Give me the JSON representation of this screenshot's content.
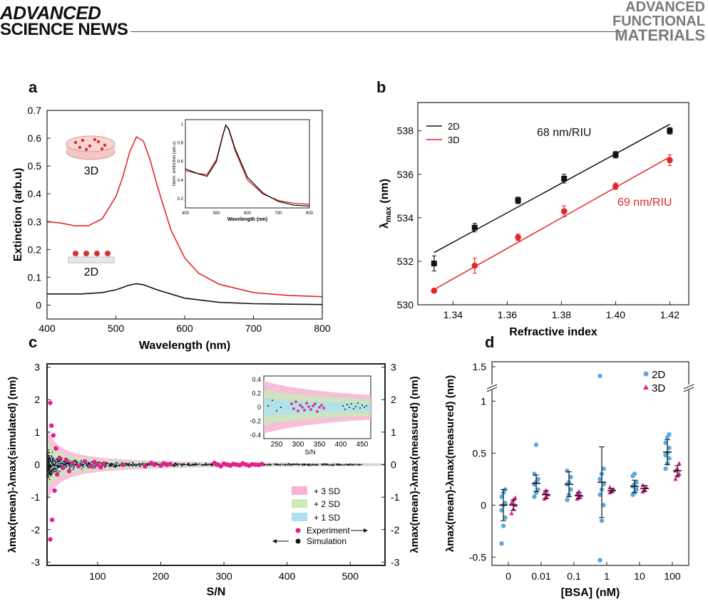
{
  "header": {
    "left_line1": "ADVANCED",
    "left_line2": "SCIENCE NEWS",
    "right_line1": "ADVANCED",
    "right_line2": "FUNCTIONAL",
    "right_line3": "MATERIALS"
  },
  "colors": {
    "red": "#e3262a",
    "black": "#111111",
    "blue": "#5aa9e0",
    "magenta": "#e3208c",
    "pink": "#f6b3d3",
    "green": "#c8ebb8",
    "cyan": "#aee0f0"
  },
  "chart_data": [
    {
      "panel": "a",
      "type": "line",
      "xlabel": "Wavelength (nm)",
      "ylabel": "Extinction (arb.u)",
      "xlim": [
        400,
        800
      ],
      "ylim": [
        -0.05,
        0.7
      ],
      "xticks": [
        400,
        500,
        600,
        700,
        800
      ],
      "yticks": [
        0,
        0.1,
        0.2,
        0.3,
        0.4,
        0.5,
        0.6,
        0.7
      ],
      "labels": [
        "3D",
        "2D"
      ],
      "series": [
        {
          "name": "3D",
          "color": "#e3262a",
          "x": [
            400,
            420,
            440,
            460,
            480,
            500,
            510,
            520,
            530,
            540,
            550,
            560,
            580,
            600,
            620,
            650,
            700,
            750,
            800
          ],
          "y": [
            0.3,
            0.295,
            0.285,
            0.285,
            0.31,
            0.39,
            0.46,
            0.55,
            0.605,
            0.59,
            0.52,
            0.43,
            0.27,
            0.17,
            0.115,
            0.075,
            0.045,
            0.035,
            0.03
          ]
        },
        {
          "name": "2D",
          "color": "#111111",
          "x": [
            400,
            450,
            480,
            500,
            520,
            530,
            540,
            560,
            600,
            650,
            700,
            800
          ],
          "y": [
            0.04,
            0.04,
            0.045,
            0.055,
            0.072,
            0.077,
            0.073,
            0.055,
            0.025,
            0.01,
            0.005,
            0.002
          ]
        }
      ],
      "inset": {
        "xlabel": "Wavelength (nm)",
        "ylabel": "Norm. extinction (arb.u)",
        "xticks": [
          400,
          500,
          600,
          700,
          800
        ],
        "yticks": [
          0.2,
          0.4,
          0.6,
          0.8,
          1.0
        ],
        "xlim": [
          400,
          800
        ],
        "ylim": [
          0.1,
          1.05
        ],
        "series": [
          {
            "name": "3D",
            "color": "#e3262a",
            "x": [
              400,
              440,
              470,
              500,
              520,
              530,
              540,
              560,
              600,
              650,
              700,
              750,
              800
            ],
            "y": [
              0.5,
              0.47,
              0.46,
              0.62,
              0.88,
              0.99,
              0.94,
              0.72,
              0.4,
              0.25,
              0.18,
              0.15,
              0.14
            ]
          },
          {
            "name": "2D",
            "color": "#111111",
            "x": [
              400,
              440,
              470,
              500,
              520,
              530,
              540,
              560,
              600,
              650,
              700,
              750,
              800
            ],
            "y": [
              0.52,
              0.47,
              0.44,
              0.6,
              0.87,
              0.99,
              0.95,
              0.74,
              0.43,
              0.26,
              0.17,
              0.13,
              0.12
            ]
          }
        ]
      }
    },
    {
      "panel": "b",
      "type": "scatter",
      "xlabel": "Refractive index",
      "ylabel_main": "λ",
      "ylabel_sub": "max",
      "ylabel_unit": " (nm)",
      "xlim": [
        1.327,
        1.427
      ],
      "ylim": [
        530,
        539.3
      ],
      "xticks": [
        1.34,
        1.36,
        1.38,
        1.4,
        1.42
      ],
      "yticks": [
        530,
        532,
        534,
        536,
        538
      ],
      "legend": [
        "2D",
        "3D"
      ],
      "annotations": [
        "68 nm/RIU",
        "69 nm/RIU"
      ],
      "series": [
        {
          "name": "2D",
          "color": "#111111",
          "x": [
            1.333,
            1.348,
            1.364,
            1.381,
            1.4,
            1.42
          ],
          "y": [
            531.9,
            533.55,
            534.8,
            535.8,
            536.9,
            538.0
          ],
          "err": [
            0.35,
            0.2,
            0.15,
            0.2,
            0.15,
            0.15
          ],
          "fit": [
            [
              1.333,
              532.4
            ],
            [
              1.42,
              538.3
            ]
          ]
        },
        {
          "name": "3D",
          "color": "#e3262a",
          "x": [
            1.333,
            1.348,
            1.364,
            1.381,
            1.4,
            1.42
          ],
          "y": [
            530.65,
            531.8,
            533.1,
            534.3,
            535.45,
            536.65
          ],
          "err": [
            0.1,
            0.35,
            0.15,
            0.25,
            0.15,
            0.25
          ],
          "fit": [
            [
              1.333,
              530.7
            ],
            [
              1.42,
              536.8
            ]
          ]
        }
      ]
    },
    {
      "panel": "c",
      "type": "scatter",
      "xlabel": "S/N",
      "ylabel_left": "λmax(mean)-λmax(simulated) (nm)",
      "ylabel_right": "λmax(mean)-λmax(measured) (nm)",
      "xlim": [
        20,
        555
      ],
      "ylim": [
        -3.1,
        3.1
      ],
      "xticks": [
        100,
        200,
        300,
        400,
        500
      ],
      "yticks": [
        -3,
        -2,
        -1,
        0,
        1,
        2,
        3
      ],
      "legend": [
        "+ 3 SD",
        "+ 2 SD",
        "+ 1 SD",
        "Experiment",
        "Simulation"
      ],
      "band_sd_coefficient": 7.6,
      "experiment": {
        "x": [
          25,
          25,
          27,
          28,
          30,
          32,
          34,
          36,
          40,
          45,
          50,
          55,
          60,
          70,
          80,
          90,
          95,
          100,
          105,
          110,
          140,
          175,
          185,
          190,
          200,
          205,
          210,
          215,
          285,
          290,
          295,
          300,
          305,
          310,
          315,
          320,
          325,
          330,
          335,
          340,
          345,
          350,
          355,
          360
        ],
        "y": [
          1.9,
          -2.3,
          1.2,
          -1.7,
          0.9,
          -0.8,
          0.5,
          -0.3,
          0.2,
          -0.1,
          0.15,
          -0.2,
          0.05,
          -0.05,
          0.1,
          -0.05,
          0.08,
          0.0,
          -0.08,
          0.03,
          0.0,
          -0.05,
          0.05,
          0.0,
          -0.03,
          0.04,
          0.0,
          0.02,
          0.05,
          0.0,
          -0.05,
          0.03,
          0.0,
          -0.03,
          0.02,
          0.0,
          -0.02,
          0.04,
          0.0,
          -0.03,
          0.01,
          0.0,
          -0.01,
          0.02
        ]
      },
      "inset": {
        "xlabel": "S/N",
        "xlim": [
          220,
          470
        ],
        "ylim": [
          -0.45,
          0.45
        ],
        "xticks": [
          250,
          300,
          350,
          400,
          450
        ],
        "yticks": [
          -0.4,
          -0.2,
          0,
          0.2,
          0.4
        ],
        "experiment": {
          "x": [
            285,
            290,
            295,
            300,
            305,
            310,
            315,
            320,
            325,
            330,
            335,
            340,
            345,
            350,
            355,
            360
          ],
          "y": [
            0.05,
            -0.02,
            0.08,
            -0.05,
            0.03,
            0.0,
            -0.04,
            0.06,
            0.01,
            -0.03,
            0.02,
            0.05,
            -0.06,
            0.0,
            0.03,
            -0.01
          ]
        },
        "simulation": {
          "x": [
            230,
            240,
            250,
            260,
            405,
            410,
            415,
            420,
            425,
            430,
            435,
            440,
            445,
            450,
            455,
            460
          ],
          "y": [
            0.02,
            0.1,
            -0.05,
            0.0,
            0.02,
            -0.03,
            0.04,
            0.0,
            0.05,
            -0.02,
            0.01,
            0.06,
            -0.01,
            0.03,
            0.0,
            0.02
          ]
        }
      }
    },
    {
      "panel": "d",
      "type": "scatter",
      "xlabel": "[BSA] (nM)",
      "ylabel": "λmax(mean)-λmax(measured) (nm)",
      "categories": [
        "0",
        "0.01",
        "0.1",
        "1",
        "10",
        "100"
      ],
      "yticks": [
        -0.5,
        0,
        0.5,
        1
      ],
      "ybreak_tick": 1.5,
      "ylim": [
        -0.58,
        1.05
      ],
      "legend": [
        "2D",
        "3D"
      ],
      "series": [
        {
          "name": "2D",
          "color": "#5aa9e0",
          "mean": [
            0.0,
            0.21,
            0.2,
            0.22,
            0.18,
            0.51
          ],
          "sd": [
            0.15,
            0.08,
            0.12,
            0.34,
            0.06,
            0.12
          ],
          "points": [
            [
              -0.37,
              -0.2,
              -0.12,
              -0.05,
              0.0,
              0.02,
              0.08,
              0.12,
              0.15
            ],
            [
              0.08,
              0.12,
              0.15,
              0.2,
              0.22,
              0.25,
              0.3,
              0.58
            ],
            [
              0.05,
              0.1,
              0.15,
              0.2,
              0.22,
              0.27,
              0.33
            ],
            [
              -0.53,
              -0.15,
              0.0,
              0.1,
              0.15,
              0.2,
              0.25,
              0.3,
              0.35,
              1.4
            ],
            [
              0.1,
              0.12,
              0.15,
              0.18,
              0.2,
              0.22,
              0.28,
              0.3
            ],
            [
              0.35,
              0.4,
              0.45,
              0.48,
              0.5,
              0.55,
              0.6,
              0.65,
              0.68
            ]
          ]
        },
        {
          "name": "3D",
          "color": "#e3208c",
          "mean": [
            0.0,
            0.1,
            0.09,
            0.14,
            0.16,
            0.33
          ],
          "sd": [
            0.05,
            0.04,
            0.03,
            0.02,
            0.03,
            0.05
          ],
          "points": [
            [
              -0.08,
              -0.04,
              0.0,
              0.02,
              0.05,
              0.07
            ],
            [
              0.06,
              0.08,
              0.1,
              0.12,
              0.14
            ],
            [
              0.06,
              0.08,
              0.09,
              0.11,
              0.13
            ],
            [
              0.12,
              0.14,
              0.15,
              0.17
            ],
            [
              0.13,
              0.15,
              0.17,
              0.19
            ],
            [
              0.25,
              0.28,
              0.3,
              0.33,
              0.35,
              0.4
            ]
          ]
        }
      ]
    }
  ],
  "panels": {
    "a": "a",
    "b": "b",
    "c": "c",
    "d": "d"
  }
}
